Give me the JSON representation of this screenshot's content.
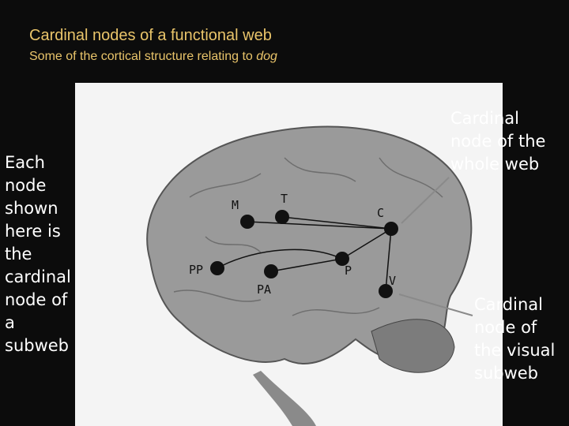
{
  "title": "Cardinal nodes of a functional web",
  "subtitle": {
    "text": "Some of the cortical structure relating to",
    "emphasis": "dog"
  },
  "left_note": "Each node shown here is the cardinal node of a subweb",
  "callouts": [
    "Cardinal node of the whole web",
    "Cardinal node of the visual subweb"
  ],
  "nodes": [
    {
      "label": "M"
    },
    {
      "label": "T"
    },
    {
      "label": "C"
    },
    {
      "label": "PP"
    },
    {
      "label": "PA"
    },
    {
      "label": "P"
    },
    {
      "label": "V"
    }
  ]
}
